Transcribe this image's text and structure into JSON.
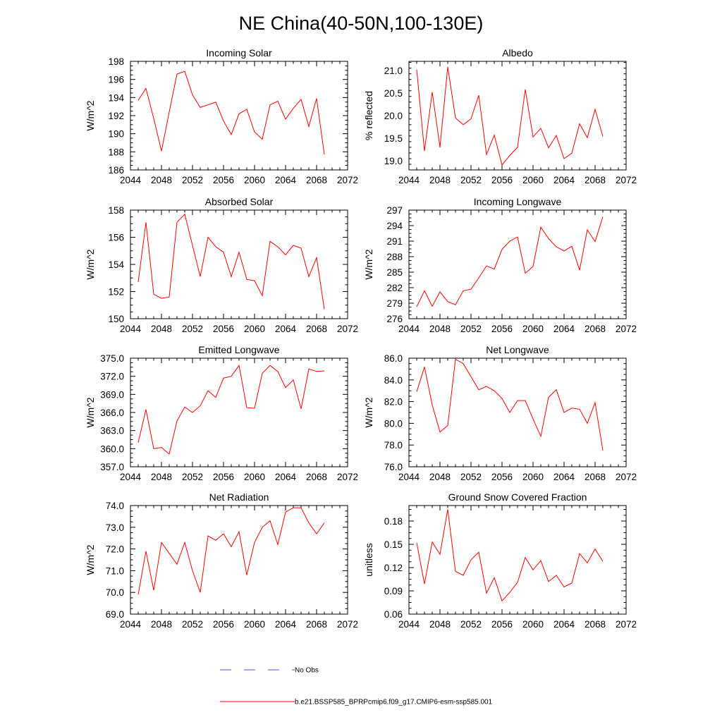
{
  "title": "NE China(40-50N,100-130E)",
  "colors": {
    "model": "#ff0000",
    "obs": "#4a5bd6",
    "axis": "#000000"
  },
  "legend": {
    "obs_label": "No Obs",
    "model_label": "b.e21.BSSP585_BPRPcmip6.f09_g17.CMIP6-esm-ssp585.001"
  },
  "chart_data": [
    {
      "type": "line",
      "title": "Incoming Solar",
      "ylabel": "W/m^2",
      "xlim": [
        2044,
        2072
      ],
      "ylim": [
        186,
        198
      ],
      "xticks": [
        2044,
        2048,
        2052,
        2056,
        2060,
        2064,
        2068,
        2072
      ],
      "yticks": [
        186,
        188,
        190,
        192,
        194,
        196,
        198
      ],
      "ytick_labels": [
        "186",
        "188",
        "190",
        "192",
        "194",
        "196",
        "198"
      ],
      "x": [
        2045,
        2046,
        2047,
        2048,
        2049,
        2050,
        2051,
        2052,
        2053,
        2054,
        2055,
        2056,
        2057,
        2058,
        2059,
        2060,
        2061,
        2062,
        2063,
        2064,
        2065,
        2066,
        2067,
        2068,
        2069
      ],
      "values": [
        193.7,
        195.0,
        191.7,
        188.1,
        192.4,
        196.6,
        196.9,
        194.3,
        192.9,
        193.2,
        193.5,
        191.4,
        189.9,
        192.2,
        192.7,
        190.2,
        189.4,
        193.2,
        193.6,
        191.6,
        192.8,
        193.8,
        190.8,
        193.9,
        187.7
      ]
    },
    {
      "type": "line",
      "title": "Albedo",
      "ylabel": "% reflected",
      "xlim": [
        2044,
        2072
      ],
      "ylim": [
        18.8,
        21.2
      ],
      "xticks": [
        2044,
        2048,
        2052,
        2056,
        2060,
        2064,
        2068,
        2072
      ],
      "yticks": [
        19.0,
        19.5,
        20.0,
        20.5,
        21.0
      ],
      "ytick_labels": [
        "19.0",
        "19.5",
        "20.0",
        "20.5",
        "21.0"
      ],
      "x": [
        2045,
        2046,
        2047,
        2048,
        2049,
        2050,
        2051,
        2052,
        2053,
        2054,
        2055,
        2056,
        2057,
        2058,
        2059,
        2060,
        2061,
        2062,
        2063,
        2064,
        2065,
        2066,
        2067,
        2068,
        2069
      ],
      "values": [
        21.02,
        19.22,
        20.52,
        19.3,
        21.08,
        19.95,
        19.8,
        19.93,
        20.45,
        19.14,
        19.57,
        18.91,
        19.12,
        19.3,
        20.58,
        19.53,
        19.72,
        19.29,
        19.56,
        19.05,
        19.17,
        19.82,
        19.51,
        20.14,
        19.54
      ]
    },
    {
      "type": "line",
      "title": "Absorbed Solar",
      "ylabel": "W/m^2",
      "xlim": [
        2044,
        2072
      ],
      "ylim": [
        150,
        158
      ],
      "xticks": [
        2044,
        2048,
        2052,
        2056,
        2060,
        2064,
        2068,
        2072
      ],
      "yticks": [
        150,
        152,
        154,
        156,
        158
      ],
      "ytick_labels": [
        "150",
        "152",
        "154",
        "156",
        "158"
      ],
      "x": [
        2045,
        2046,
        2047,
        2048,
        2049,
        2050,
        2051,
        2052,
        2053,
        2054,
        2055,
        2056,
        2057,
        2058,
        2059,
        2060,
        2061,
        2062,
        2063,
        2064,
        2065,
        2066,
        2067,
        2068,
        2069
      ],
      "values": [
        152.7,
        157.1,
        151.8,
        151.5,
        151.6,
        157.1,
        157.7,
        155.4,
        153.1,
        156.0,
        155.3,
        154.9,
        153.1,
        154.9,
        152.9,
        152.8,
        151.7,
        155.7,
        155.3,
        154.7,
        155.4,
        155.2,
        153.1,
        154.5,
        150.7
      ]
    },
    {
      "type": "line",
      "title": "Incoming Longwave",
      "ylabel": "W/m^2",
      "xlim": [
        2044,
        2072
      ],
      "ylim": [
        276,
        297
      ],
      "xticks": [
        2044,
        2048,
        2052,
        2056,
        2060,
        2064,
        2068,
        2072
      ],
      "yticks": [
        276,
        279,
        282,
        285,
        288,
        291,
        294,
        297
      ],
      "ytick_labels": [
        "276",
        "279",
        "282",
        "285",
        "288",
        "291",
        "294",
        "297"
      ],
      "x": [
        2045,
        2046,
        2047,
        2048,
        2049,
        2050,
        2051,
        2052,
        2053,
        2054,
        2055,
        2056,
        2057,
        2058,
        2059,
        2060,
        2061,
        2062,
        2063,
        2064,
        2065,
        2066,
        2067,
        2068,
        2069
      ],
      "values": [
        278.3,
        281.4,
        278.4,
        281.2,
        279.3,
        278.7,
        281.4,
        281.7,
        283.9,
        286.2,
        285.6,
        289.4,
        291.0,
        291.8,
        284.8,
        286.1,
        293.7,
        291.5,
        289.9,
        289.1,
        290.0,
        285.4,
        293.2,
        290.9,
        295.7
      ]
    },
    {
      "type": "line",
      "title": "Emitted Longwave",
      "ylabel": "W/m^2",
      "xlim": [
        2044,
        2072
      ],
      "ylim": [
        357,
        375
      ],
      "xticks": [
        2044,
        2048,
        2052,
        2056,
        2060,
        2064,
        2068,
        2072
      ],
      "yticks": [
        357,
        360,
        363,
        366,
        369,
        372,
        375
      ],
      "ytick_labels": [
        "357.0",
        "360.0",
        "363.0",
        "366.0",
        "369.0",
        "372.0",
        "375.0"
      ],
      "x": [
        2045,
        2046,
        2047,
        2048,
        2049,
        2050,
        2051,
        2052,
        2053,
        2054,
        2055,
        2056,
        2057,
        2058,
        2059,
        2060,
        2061,
        2062,
        2063,
        2064,
        2065,
        2066,
        2067,
        2068,
        2069
      ],
      "values": [
        361.0,
        366.5,
        360.0,
        360.2,
        359.1,
        364.6,
        366.9,
        366.0,
        367.1,
        369.6,
        368.5,
        371.7,
        372.0,
        373.8,
        366.8,
        366.7,
        372.5,
        373.8,
        372.8,
        370.1,
        371.4,
        366.6,
        373.2,
        372.8,
        372.9
      ]
    },
    {
      "type": "line",
      "title": "Net Longwave",
      "ylabel": "W/m^2",
      "xlim": [
        2044,
        2072
      ],
      "ylim": [
        76,
        86
      ],
      "xticks": [
        2044,
        2048,
        2052,
        2056,
        2060,
        2064,
        2068,
        2072
      ],
      "yticks": [
        76,
        78,
        80,
        82,
        84,
        86
      ],
      "ytick_labels": [
        "76.0",
        "78.0",
        "80.0",
        "82.0",
        "84.0",
        "86.0"
      ],
      "x": [
        2045,
        2046,
        2047,
        2048,
        2049,
        2050,
        2051,
        2052,
        2053,
        2054,
        2055,
        2056,
        2057,
        2058,
        2059,
        2060,
        2061,
        2062,
        2063,
        2064,
        2065,
        2066,
        2067,
        2068,
        2069
      ],
      "values": [
        82.9,
        85.2,
        81.7,
        79.2,
        79.8,
        85.9,
        85.5,
        84.3,
        83.1,
        83.4,
        83.0,
        82.3,
        81.0,
        82.1,
        82.1,
        80.4,
        78.8,
        82.4,
        83.1,
        81.0,
        81.4,
        81.3,
        80.0,
        81.9,
        77.5
      ]
    },
    {
      "type": "line",
      "title": "Net Radiation",
      "ylabel": "W/m^2",
      "xlim": [
        2044,
        2072
      ],
      "ylim": [
        69,
        74
      ],
      "xticks": [
        2044,
        2048,
        2052,
        2056,
        2060,
        2064,
        2068,
        2072
      ],
      "yticks": [
        69,
        70,
        71,
        72,
        73,
        74
      ],
      "ytick_labels": [
        "69.0",
        "70.0",
        "71.0",
        "72.0",
        "73.0",
        "74.0"
      ],
      "x": [
        2045,
        2046,
        2047,
        2048,
        2049,
        2050,
        2051,
        2052,
        2053,
        2054,
        2055,
        2056,
        2057,
        2058,
        2059,
        2060,
        2061,
        2062,
        2063,
        2064,
        2065,
        2066,
        2067,
        2068,
        2069
      ],
      "values": [
        69.9,
        71.9,
        70.1,
        72.3,
        71.8,
        71.3,
        72.3,
        71.0,
        70.0,
        72.6,
        72.4,
        72.7,
        72.1,
        72.8,
        70.8,
        72.3,
        73.0,
        73.3,
        72.2,
        73.7,
        73.9,
        73.9,
        73.2,
        72.7,
        73.2
      ]
    },
    {
      "type": "line",
      "title": "Ground Snow Covered Fraction",
      "ylabel": "unitless",
      "xlim": [
        2044,
        2072
      ],
      "ylim": [
        0.06,
        0.2
      ],
      "xticks": [
        2044,
        2048,
        2052,
        2056,
        2060,
        2064,
        2068,
        2072
      ],
      "yticks": [
        0.06,
        0.09,
        0.12,
        0.15,
        0.18
      ],
      "ytick_labels": [
        "0.06",
        "0.09",
        "0.12",
        "0.15",
        "0.18"
      ],
      "x": [
        2045,
        2046,
        2047,
        2048,
        2049,
        2050,
        2051,
        2052,
        2053,
        2054,
        2055,
        2056,
        2057,
        2058,
        2059,
        2060,
        2061,
        2062,
        2063,
        2064,
        2065,
        2066,
        2067,
        2068,
        2069
      ],
      "values": [
        0.152,
        0.099,
        0.153,
        0.137,
        0.195,
        0.115,
        0.11,
        0.13,
        0.14,
        0.087,
        0.107,
        0.077,
        0.088,
        0.101,
        0.133,
        0.117,
        0.129,
        0.102,
        0.11,
        0.095,
        0.1,
        0.138,
        0.126,
        0.144,
        0.128
      ]
    }
  ]
}
